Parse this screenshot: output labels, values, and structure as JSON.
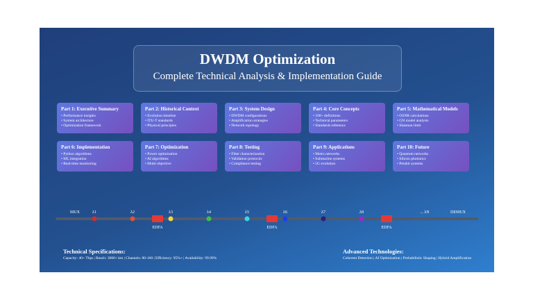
{
  "header": {
    "title": "DWDM Optimization",
    "subtitle": "Complete Technical Analysis & Implementation Guide"
  },
  "cards": [
    {
      "title": "Part 1: Executive Summary",
      "items": [
        "• Performance insights",
        "• System architecture",
        "• Optimization framework"
      ]
    },
    {
      "title": "Part 2: Historical Context",
      "items": [
        "• Evolution timeline",
        "• ITU-T standards",
        "• Physical principles"
      ]
    },
    {
      "title": "Part 3: System Design",
      "items": [
        "• DWDM configurations",
        "• Amplification strategies",
        "• Network topology"
      ]
    },
    {
      "title": "Part 4: Core Concepts",
      "items": [
        "• 100+ definitions",
        "• Technical parameters",
        "• Standards reference"
      ]
    },
    {
      "title": "Part 5: Mathematical Models",
      "items": [
        "• OSNR calculations",
        "• GN model analysis",
        "• Shannon limit"
      ]
    },
    {
      "title": "Part 6: Implementation",
      "items": [
        "• Python algorithms",
        "• ML integration",
        "• Real-time monitoring"
      ]
    },
    {
      "title": "Part 7: Optimization",
      "items": [
        "• Power optimization",
        "• AI algorithms",
        "• Multi-objective"
      ]
    },
    {
      "title": "Part 8: Testing",
      "items": [
        "• Fiber characterization",
        "• Validation protocols",
        "• Compliance testing"
      ]
    },
    {
      "title": "Part 9: Applications",
      "items": [
        "• Metro networks",
        "• Submarine systems",
        "• 5G evolution"
      ]
    },
    {
      "title": "Part 10: Future",
      "items": [
        "• Quantum networks",
        "• Silicon photonics",
        "• Petabit systems"
      ]
    }
  ],
  "timeline": {
    "start": "MUX",
    "end": "DEMUX",
    "last": "... λN",
    "amplifier": "EDFA",
    "channels": [
      {
        "label": "λ1",
        "color": "#d32f2f"
      },
      {
        "label": "λ2",
        "color": "#e0542a"
      },
      {
        "label": "λ3",
        "color": "#f2d53c"
      },
      {
        "label": "λ4",
        "color": "#3fbf4a"
      },
      {
        "label": "λ5",
        "color": "#3fd3e6"
      },
      {
        "label": "λ6",
        "color": "#1f3cf0"
      },
      {
        "label": "λ7",
        "color": "#2e1f78"
      },
      {
        "label": "λ8",
        "color": "#9a2bc9"
      }
    ]
  },
  "footer": {
    "specs_title": "Technical Specifications:",
    "specs": "Capacity: 40+ Tbps | Reach: 3000+ km | Channels: 80-160 | Efficiency: 95%+ | Availability: 99.99%",
    "tech_title": "Advanced Technologies:",
    "tech": "Coherent Detection | AI Optimization | Probabilistic Shaping | Hybrid Amplification"
  }
}
